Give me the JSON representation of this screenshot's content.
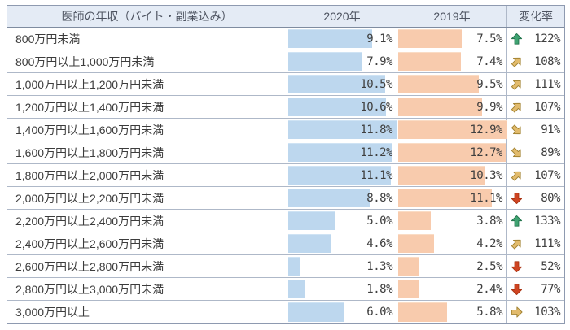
{
  "table": {
    "headers": {
      "category": "医師の年収（バイト・副業込み）",
      "y2020": "2020年",
      "y2019": "2019年",
      "change": "変化率"
    },
    "max_2020": 11.8,
    "max_2019": 12.9,
    "rows": [
      {
        "label": "800万円未満",
        "v2020": "9.1%",
        "p2020": 9.1,
        "v2019": "7.5%",
        "p2019": 7.5,
        "change": "122%",
        "trend": "up"
      },
      {
        "label": "800万円以上1,000万円未満",
        "v2020": "7.9%",
        "p2020": 7.9,
        "v2019": "7.4%",
        "p2019": 7.4,
        "change": "108%",
        "trend": "up-right"
      },
      {
        "label": "1,000万円以上1,200万円未満",
        "v2020": "10.5%",
        "p2020": 10.5,
        "v2019": "9.5%",
        "p2019": 9.5,
        "change": "111%",
        "trend": "up-right"
      },
      {
        "label": "1,200万円以上1,400万円未満",
        "v2020": "10.6%",
        "p2020": 10.6,
        "v2019": "9.9%",
        "p2019": 9.9,
        "change": "107%",
        "trend": "up-right"
      },
      {
        "label": "1,400万円以上1,600万円未満",
        "v2020": "11.8%",
        "p2020": 11.8,
        "v2019": "12.9%",
        "p2019": 12.9,
        "change": "91%",
        "trend": "down-right"
      },
      {
        "label": "1,600万円以上1,800万円未満",
        "v2020": "11.2%",
        "p2020": 11.2,
        "v2019": "12.7%",
        "p2019": 12.7,
        "change": "89%",
        "trend": "down-right"
      },
      {
        "label": "1,800万円以上2,000万円未満",
        "v2020": "11.1%",
        "p2020": 11.1,
        "v2019": "10.3%",
        "p2019": 10.3,
        "change": "107%",
        "trend": "up-right"
      },
      {
        "label": "2,000万円以上2,200万円未満",
        "v2020": "8.8%",
        "p2020": 8.8,
        "v2019": "11.1%",
        "p2019": 11.1,
        "change": "80%",
        "trend": "down"
      },
      {
        "label": "2,200万円以上2,400万円未満",
        "v2020": "5.0%",
        "p2020": 5.0,
        "v2019": "3.8%",
        "p2019": 3.8,
        "change": "133%",
        "trend": "up"
      },
      {
        "label": "2,400万円以上2,600万円未満",
        "v2020": "4.6%",
        "p2020": 4.6,
        "v2019": "4.2%",
        "p2019": 4.2,
        "change": "111%",
        "trend": "up-right"
      },
      {
        "label": "2,600万円以上2,800万円未満",
        "v2020": "1.3%",
        "p2020": 1.3,
        "v2019": "2.5%",
        "p2019": 2.5,
        "change": "52%",
        "trend": "down"
      },
      {
        "label": "2,800万円以上3,000万円未満",
        "v2020": "1.8%",
        "p2020": 1.8,
        "v2019": "2.4%",
        "p2019": 2.4,
        "change": "77%",
        "trend": "down"
      },
      {
        "label": "3,000万円以上",
        "v2020": "6.0%",
        "p2020": 6.0,
        "v2019": "5.8%",
        "p2019": 5.8,
        "change": "103%",
        "trend": "right"
      }
    ]
  },
  "colors": {
    "bar_2020": "#bdd7ee",
    "bar_2019": "#f8cbad",
    "header_bg": "#e4ebf5",
    "grid_border": "#aeb8c8",
    "arrow_up": {
      "fill": "#3fa372",
      "stroke": "#23744d"
    },
    "arrow_mid": {
      "fill": "#e2bb6c",
      "stroke": "#a1812f"
    },
    "arrow_down": {
      "fill": "#cf4422",
      "stroke": "#a93413"
    }
  },
  "chart_data": {
    "type": "table",
    "title": "医師の年収（バイト・副業込み）",
    "categories": [
      "800万円未満",
      "800万円以上1,000万円未満",
      "1,000万円以上1,200万円未満",
      "1,200万円以上1,400万円未満",
      "1,400万円以上1,600万円未満",
      "1,600万円以上1,800万円未満",
      "1,800万円以上2,000万円未満",
      "2,000万円以上2,200万円未満",
      "2,200万円以上2,400万円未満",
      "2,400万円以上2,600万円未満",
      "2,600万円以上2,800万円未満",
      "2,800万円以上3,000万円未満",
      "3,000万円以上"
    ],
    "series": [
      {
        "name": "2020年",
        "unit": "%",
        "values": [
          9.1,
          7.9,
          10.5,
          10.6,
          11.8,
          11.2,
          11.1,
          8.8,
          5.0,
          4.6,
          1.3,
          1.8,
          6.0
        ]
      },
      {
        "name": "2019年",
        "unit": "%",
        "values": [
          7.5,
          7.4,
          9.5,
          9.9,
          12.9,
          12.7,
          10.3,
          11.1,
          3.8,
          4.2,
          2.5,
          2.4,
          5.8
        ]
      },
      {
        "name": "変化率",
        "unit": "%",
        "values": [
          122,
          108,
          111,
          107,
          91,
          89,
          107,
          80,
          133,
          111,
          52,
          77,
          103
        ]
      }
    ],
    "legend_position": "none",
    "grid": true
  }
}
